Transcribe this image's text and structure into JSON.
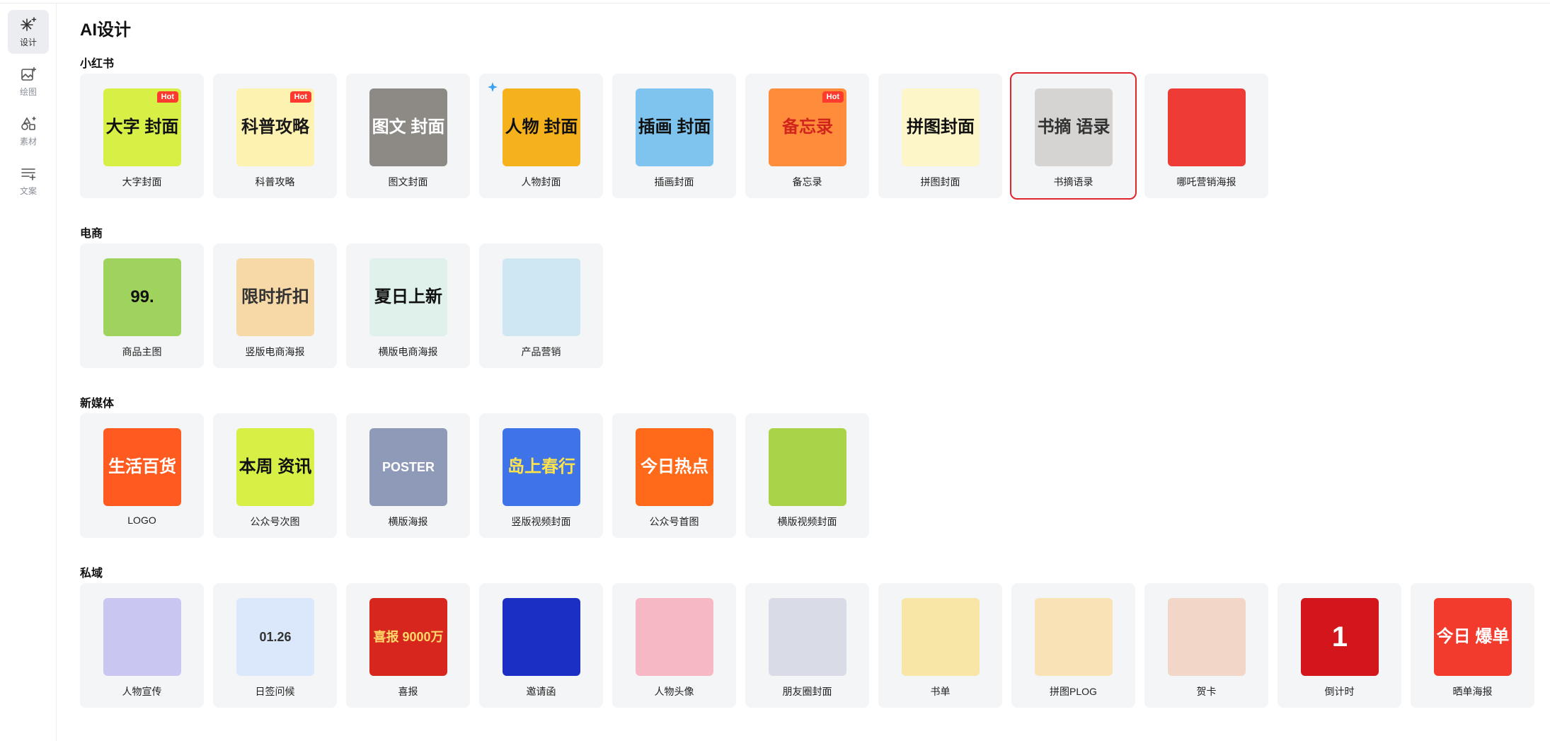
{
  "sidebar": {
    "items": [
      {
        "label": "设计",
        "icon": "sparkle-icon",
        "active": true
      },
      {
        "label": "绘图",
        "icon": "image-plus-icon",
        "active": false
      },
      {
        "label": "素材",
        "icon": "shapes-icon",
        "active": false
      },
      {
        "label": "文案",
        "icon": "text-lines-icon",
        "active": false
      }
    ]
  },
  "page_title": "AI设计",
  "sections": [
    {
      "title": "小红书",
      "cards": [
        {
          "label": "大字封面",
          "hot": "Hot",
          "thumb_text": "大字 封面",
          "bg": "#d8f046",
          "fg": "#111111"
        },
        {
          "label": "科普攻略",
          "hot": "Hot",
          "thumb_text": "科普攻略",
          "bg": "#fdf2b0",
          "fg": "#1a1a1a"
        },
        {
          "label": "图文封面",
          "hot": "",
          "thumb_text": "图文 封面",
          "bg": "#8d8a85",
          "fg": "#ffffff"
        },
        {
          "label": "人物封面",
          "hot": "",
          "thumb_text": "人物 封面",
          "bg": "#f5b21c",
          "fg": "#111111",
          "sparkle": true
        },
        {
          "label": "插画封面",
          "hot": "",
          "thumb_text": "插画 封面",
          "bg": "#7fc4ef",
          "fg": "#111111"
        },
        {
          "label": "备忘录",
          "hot": "Hot",
          "thumb_text": "备忘录",
          "bg": "#ff8c3a",
          "fg": "#d0241c"
        },
        {
          "label": "拼图封面",
          "hot": "",
          "thumb_text": "拼图封面",
          "bg": "#fdf6c9",
          "fg": "#111111"
        },
        {
          "label": "书摘语录",
          "hot": "",
          "thumb_text": "书摘 语录",
          "bg": "#d6d4d3",
          "fg": "#333333",
          "selected": true
        },
        {
          "label": "哪吒营销海报",
          "hot": "",
          "thumb_text": "",
          "bg": "#ef3b35",
          "fg": "#ffffff"
        }
      ]
    },
    {
      "title": "电商",
      "cards": [
        {
          "label": "商品主图",
          "hot": "",
          "thumb_text": "99.",
          "bg": "#9fd35e",
          "fg": "#111111"
        },
        {
          "label": "竖版电商海报",
          "hot": "",
          "thumb_text": "限时折扣",
          "bg": "#f7d9a8",
          "fg": "#333333"
        },
        {
          "label": "横版电商海报",
          "hot": "",
          "thumb_text": "夏日上新",
          "bg": "#dff1ea",
          "fg": "#111111"
        },
        {
          "label": "产品营销",
          "hot": "",
          "thumb_text": "",
          "bg": "#cfe7f3",
          "fg": "#333333"
        }
      ]
    },
    {
      "title": "新媒体",
      "cards": [
        {
          "label": "LOGO",
          "hot": "",
          "thumb_text": "生活百货",
          "bg": "#ff5a1f",
          "fg": "#ffffff"
        },
        {
          "label": "公众号次图",
          "hot": "",
          "thumb_text": "本周 资讯",
          "bg": "#d8f046",
          "fg": "#111111"
        },
        {
          "label": "横版海报",
          "hot": "",
          "thumb_text": "POSTER",
          "bg": "#8e9ab8",
          "fg": "#ffffff"
        },
        {
          "label": "竖版视频封面",
          "hot": "",
          "thumb_text": "岛上春行",
          "bg": "#3f74e8",
          "fg": "#ffe34a"
        },
        {
          "label": "公众号首图",
          "hot": "",
          "thumb_text": "今日热点",
          "bg": "#ff6a1a",
          "fg": "#ffffff"
        },
        {
          "label": "横版视频封面",
          "hot": "",
          "thumb_text": "",
          "bg": "#a9d44a",
          "fg": "#111111"
        }
      ]
    },
    {
      "title": "私域",
      "cards": [
        {
          "label": "人物宣传",
          "hot": "",
          "thumb_text": "",
          "bg": "#c9c6f2",
          "fg": "#2a2a8a"
        },
        {
          "label": "日签问候",
          "hot": "",
          "thumb_text": "01.26",
          "bg": "#dbe8fb",
          "fg": "#333333"
        },
        {
          "label": "喜报",
          "hot": "",
          "thumb_text": "喜报 9000万",
          "bg": "#d7261e",
          "fg": "#ffd96a"
        },
        {
          "label": "邀请函",
          "hot": "",
          "thumb_text": "",
          "bg": "#1c2fc4",
          "fg": "#ffffff"
        },
        {
          "label": "人物头像",
          "hot": "",
          "thumb_text": "",
          "bg": "#f6b8c4",
          "fg": "#111111"
        },
        {
          "label": "朋友圈封面",
          "hot": "",
          "thumb_text": "",
          "bg": "#d9dbe6",
          "fg": "#111111"
        },
        {
          "label": "书单",
          "hot": "",
          "thumb_text": "",
          "bg": "#f8e6a7",
          "fg": "#333333"
        },
        {
          "label": "拼图PLOG",
          "hot": "",
          "thumb_text": "",
          "bg": "#f9e2b5",
          "fg": "#333333"
        },
        {
          "label": "贺卡",
          "hot": "",
          "thumb_text": "",
          "bg": "#f2d7c8",
          "fg": "#333333"
        },
        {
          "label": "倒计时",
          "hot": "",
          "thumb_text": "1",
          "bg": "#d2161c",
          "fg": "#ffffff"
        },
        {
          "label": "晒单海报",
          "hot": "",
          "thumb_text": "今日 爆单",
          "bg": "#f23b2c",
          "fg": "#ffffff"
        }
      ]
    }
  ]
}
